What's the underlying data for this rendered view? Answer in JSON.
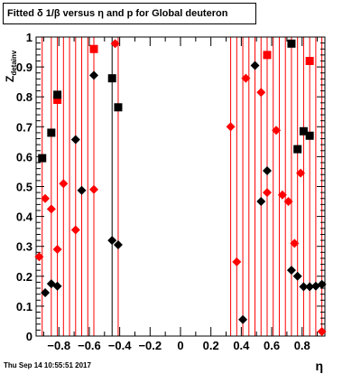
{
  "chart_data": {
    "type": "scatter",
    "title": "Fitted δ 1/β versus η and p for Global deuteron",
    "xlabel": "η",
    "ylabel": "Z_{detainv}",
    "xlim": [
      -0.95,
      0.95
    ],
    "ylim": [
      0,
      1
    ],
    "x_ticks": [
      -0.8,
      -0.6,
      -0.4,
      -0.2,
      0,
      0.2,
      0.4,
      0.6,
      0.8
    ],
    "x_tick_labels": [
      "−0.8",
      "−0.6",
      "−0.4",
      "−0.2",
      "0",
      "0.2",
      "0.4",
      "0.6",
      "0.8"
    ],
    "y_ticks": [
      0,
      0.1,
      0.2,
      0.3,
      0.4,
      0.5,
      0.6,
      0.7,
      0.8,
      0.9,
      1
    ],
    "y_tick_labels": [
      "0",
      "0.1",
      "0.2",
      "0.3",
      "0.4",
      "0.5",
      "0.6",
      "0.7",
      "0.8",
      "0.9",
      "1"
    ],
    "vertical_lines": {
      "red": [
        -0.91,
        -0.85,
        -0.81,
        -0.77,
        -0.73,
        -0.69,
        -0.65,
        -0.61,
        -0.57,
        -0.41,
        0.33,
        0.37,
        0.41,
        0.45,
        0.49,
        0.53,
        0.57,
        0.61,
        0.65,
        0.69,
        0.73,
        0.77,
        0.81,
        0.85,
        0.89,
        0.93
      ],
      "black": [
        -0.45
      ]
    },
    "series": [
      {
        "color": "#ff0000",
        "marker": "diamond",
        "points": [
          {
            "x": -0.93,
            "y": 0.265
          },
          {
            "x": -0.89,
            "y": 0.46
          },
          {
            "x": -0.85,
            "y": 0.425
          },
          {
            "x": -0.81,
            "y": 0.29
          },
          {
            "x": -0.77,
            "y": 0.51
          },
          {
            "x": -0.69,
            "y": 0.355
          },
          {
            "x": -0.57,
            "y": 0.49
          },
          {
            "x": -0.43,
            "y": 0.978
          },
          {
            "x": 0.33,
            "y": 0.7
          },
          {
            "x": 0.37,
            "y": 0.248
          },
          {
            "x": 0.43,
            "y": 0.862
          },
          {
            "x": 0.53,
            "y": 0.815
          },
          {
            "x": 0.57,
            "y": 0.48
          },
          {
            "x": 0.63,
            "y": 0.688
          },
          {
            "x": 0.67,
            "y": 0.472
          },
          {
            "x": 0.71,
            "y": 0.45
          },
          {
            "x": 0.75,
            "y": 0.31
          },
          {
            "x": 0.79,
            "y": 0.545
          },
          {
            "x": 0.93,
            "y": 0.015
          }
        ]
      },
      {
        "color": "#ff0000",
        "marker": "square",
        "points": [
          {
            "x": -0.81,
            "y": 0.79
          },
          {
            "x": -0.57,
            "y": 0.96
          },
          {
            "x": 0.57,
            "y": 0.94
          },
          {
            "x": 0.85,
            "y": 0.92
          }
        ]
      },
      {
        "color": "#000000",
        "marker": "diamond",
        "points": [
          {
            "x": -0.89,
            "y": 0.145
          },
          {
            "x": -0.85,
            "y": 0.175
          },
          {
            "x": -0.81,
            "y": 0.167
          },
          {
            "x": -0.69,
            "y": 0.657
          },
          {
            "x": -0.65,
            "y": 0.487
          },
          {
            "x": -0.57,
            "y": 0.872
          },
          {
            "x": -0.45,
            "y": 0.32
          },
          {
            "x": -0.41,
            "y": 0.305
          },
          {
            "x": 0.41,
            "y": 0.055
          },
          {
            "x": 0.49,
            "y": 0.905
          },
          {
            "x": 0.53,
            "y": 0.45
          },
          {
            "x": 0.57,
            "y": 0.553
          },
          {
            "x": 0.73,
            "y": 0.22
          },
          {
            "x": 0.77,
            "y": 0.2
          },
          {
            "x": 0.81,
            "y": 0.165
          },
          {
            "x": 0.85,
            "y": 0.165
          },
          {
            "x": 0.89,
            "y": 0.167
          },
          {
            "x": 0.93,
            "y": 0.173
          }
        ]
      },
      {
        "color": "#000000",
        "marker": "square",
        "points": [
          {
            "x": -0.91,
            "y": 0.595
          },
          {
            "x": -0.85,
            "y": 0.68
          },
          {
            "x": -0.81,
            "y": 0.807
          },
          {
            "x": -0.45,
            "y": 0.862
          },
          {
            "x": -0.41,
            "y": 0.765
          },
          {
            "x": 0.73,
            "y": 0.978
          },
          {
            "x": 0.77,
            "y": 0.625
          },
          {
            "x": 0.81,
            "y": 0.685
          },
          {
            "x": 0.85,
            "y": 0.67
          }
        ]
      }
    ]
  },
  "footer": {
    "date": "Thu Sep 14 10:55:51 2017"
  }
}
